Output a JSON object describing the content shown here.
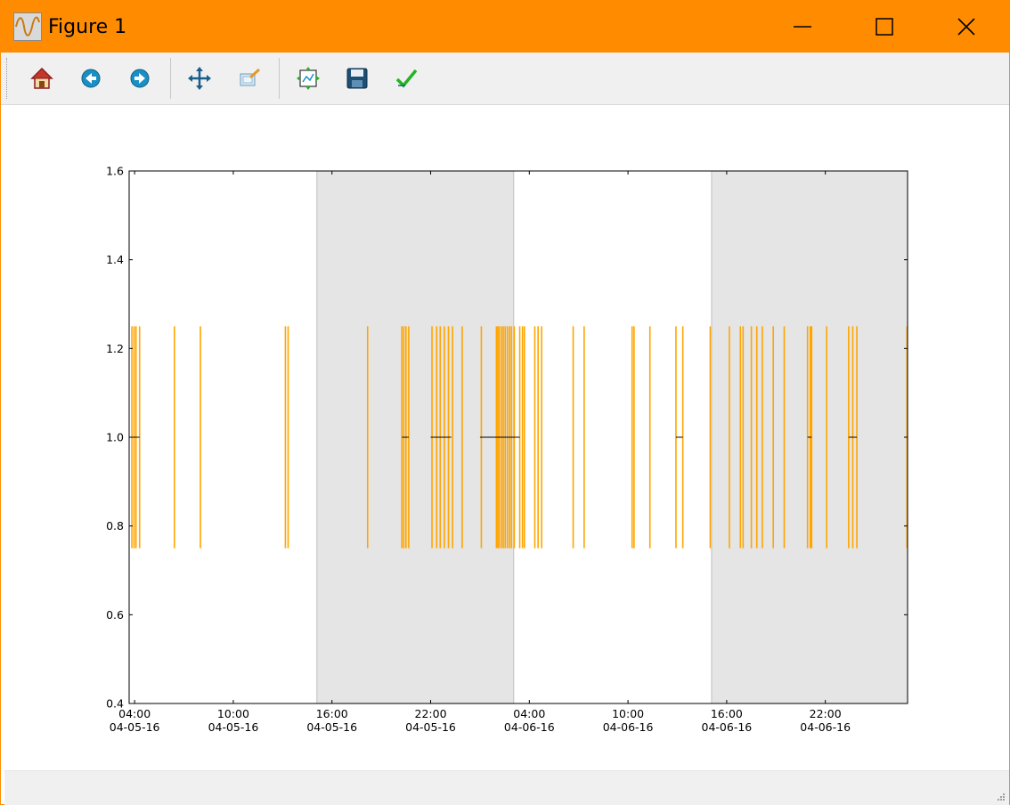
{
  "window": {
    "title": "Figure 1",
    "accent_color": "#ff8c00",
    "buttons": {
      "minimize": "minimize-icon",
      "maximize": "maximize-icon",
      "close": "close-icon"
    }
  },
  "toolbar": {
    "items": [
      {
        "name": "home-button",
        "icon": "home-icon"
      },
      {
        "name": "back-button",
        "icon": "arrow-left-icon"
      },
      {
        "name": "forward-button",
        "icon": "arrow-right-icon"
      },
      {
        "name": "pan-button",
        "icon": "move-icon"
      },
      {
        "name": "zoom-button",
        "icon": "zoom-rect-icon"
      },
      {
        "name": "subplots-button",
        "icon": "subplots-icon"
      },
      {
        "name": "save-button",
        "icon": "floppy-disk-icon"
      },
      {
        "name": "edit-button",
        "icon": "check-icon"
      }
    ]
  },
  "status": {
    "text": ""
  },
  "chart_data": {
    "type": "line",
    "title": "",
    "xlabel": "",
    "ylabel": "",
    "xlim": [
      "2016-04-05 03:40",
      "2016-04-07 03:00"
    ],
    "ylim": [
      0.4,
      1.6
    ],
    "y_ticks": [
      "0.4",
      "0.6",
      "0.8",
      "1.0",
      "1.2",
      "1.4",
      "1.6"
    ],
    "x_ticks": [
      {
        "time": "04:00",
        "date": "04-05-16",
        "at": "2016-04-05 04:00"
      },
      {
        "time": "10:00",
        "date": "04-05-16",
        "at": "2016-04-05 10:00"
      },
      {
        "time": "16:00",
        "date": "04-05-16",
        "at": "2016-04-05 16:00"
      },
      {
        "time": "22:00",
        "date": "04-05-16",
        "at": "2016-04-05 22:00"
      },
      {
        "time": "04:00",
        "date": "04-06-16",
        "at": "2016-04-06 04:00"
      },
      {
        "time": "10:00",
        "date": "04-06-16",
        "at": "2016-04-06 10:00"
      },
      {
        "time": "16:00",
        "date": "04-06-16",
        "at": "2016-04-06 16:00"
      },
      {
        "time": "22:00",
        "date": "04-06-16",
        "at": "2016-04-06 22:00"
      }
    ],
    "shaded_spans": [
      {
        "start": "2016-04-05 15:05",
        "end": "2016-04-06 03:03",
        "color": "#e5e5e5"
      },
      {
        "start": "2016-04-06 15:05",
        "end": "2016-04-07 03:00",
        "color": "#e5e5e5"
      }
    ],
    "event_series": {
      "color": "#ffa500",
      "y_min": 0.75,
      "y_max": 1.25,
      "x": [
        "2016-04-05 03:50",
        "2016-04-05 03:58",
        "2016-04-05 04:05",
        "2016-04-05 04:18",
        "2016-04-05 06:25",
        "2016-04-05 08:00",
        "2016-04-05 13:10",
        "2016-04-05 13:20",
        "2016-04-05 18:10",
        "2016-04-05 20:15",
        "2016-04-05 20:22",
        "2016-04-05 20:30",
        "2016-04-05 20:40",
        "2016-04-05 22:05",
        "2016-04-05 22:22",
        "2016-04-05 22:35",
        "2016-04-05 22:50",
        "2016-04-05 23:05",
        "2016-04-05 23:20",
        "2016-04-05 23:55",
        "2016-04-06 01:05",
        "2016-04-06 02:00",
        "2016-04-06 02:05",
        "2016-04-06 02:10",
        "2016-04-06 02:18",
        "2016-04-06 02:25",
        "2016-04-06 02:32",
        "2016-04-06 02:40",
        "2016-04-06 02:48",
        "2016-04-06 02:55",
        "2016-04-06 03:05",
        "2016-04-06 03:25",
        "2016-04-06 03:35",
        "2016-04-06 03:42",
        "2016-04-06 04:20",
        "2016-04-06 04:32",
        "2016-04-06 04:45",
        "2016-04-06 06:40",
        "2016-04-06 07:20",
        "2016-04-06 10:15",
        "2016-04-06 10:22",
        "2016-04-06 11:20",
        "2016-04-06 12:55",
        "2016-04-06 13:20",
        "2016-04-06 15:00",
        "2016-04-06 16:10",
        "2016-04-06 16:50",
        "2016-04-06 17:00",
        "2016-04-06 17:30",
        "2016-04-06 17:50",
        "2016-04-06 18:10",
        "2016-04-06 18:50",
        "2016-04-06 19:30",
        "2016-04-06 20:55",
        "2016-04-06 21:05",
        "2016-04-06 21:10",
        "2016-04-06 22:05",
        "2016-04-06 23:25",
        "2016-04-06 23:40",
        "2016-04-06 23:55",
        "2016-04-07 02:58"
      ]
    },
    "span_series": {
      "color": "#000000",
      "y": 1.0,
      "spans": [
        [
          "2016-04-05 03:50",
          "2016-04-05 04:18"
        ],
        [
          "2016-04-05 20:15",
          "2016-04-05 20:40"
        ],
        [
          "2016-04-05 22:00",
          "2016-04-05 23:15"
        ],
        [
          "2016-04-06 01:00",
          "2016-04-06 03:25"
        ],
        [
          "2016-04-06 12:55",
          "2016-04-06 13:20"
        ],
        [
          "2016-04-06 20:55",
          "2016-04-06 21:10"
        ],
        [
          "2016-04-06 23:25",
          "2016-04-06 23:55"
        ]
      ]
    }
  }
}
